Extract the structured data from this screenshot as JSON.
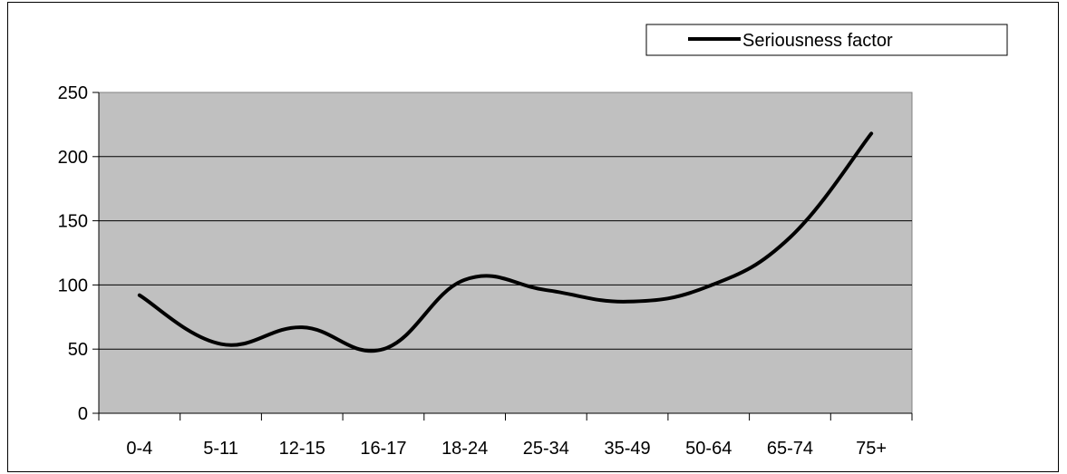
{
  "chart_data": {
    "type": "line",
    "categories": [
      "0-4",
      "5-11",
      "12-15",
      "16-17",
      "18-24",
      "25-34",
      "35-49",
      "50-64",
      "65-74",
      "75+"
    ],
    "series": [
      {
        "name": "Seriousness factor",
        "values": [
          92,
          54,
          67,
          50,
          104,
          96,
          87,
          99,
          137,
          218
        ],
        "color": "#000000"
      }
    ],
    "ylim": [
      0,
      250
    ],
    "yticks": [
      0,
      50,
      100,
      150,
      200,
      250
    ],
    "grid": "horizontal",
    "plot_background": "#c0c0c0",
    "legend_position": "top-right",
    "smooth": true
  }
}
